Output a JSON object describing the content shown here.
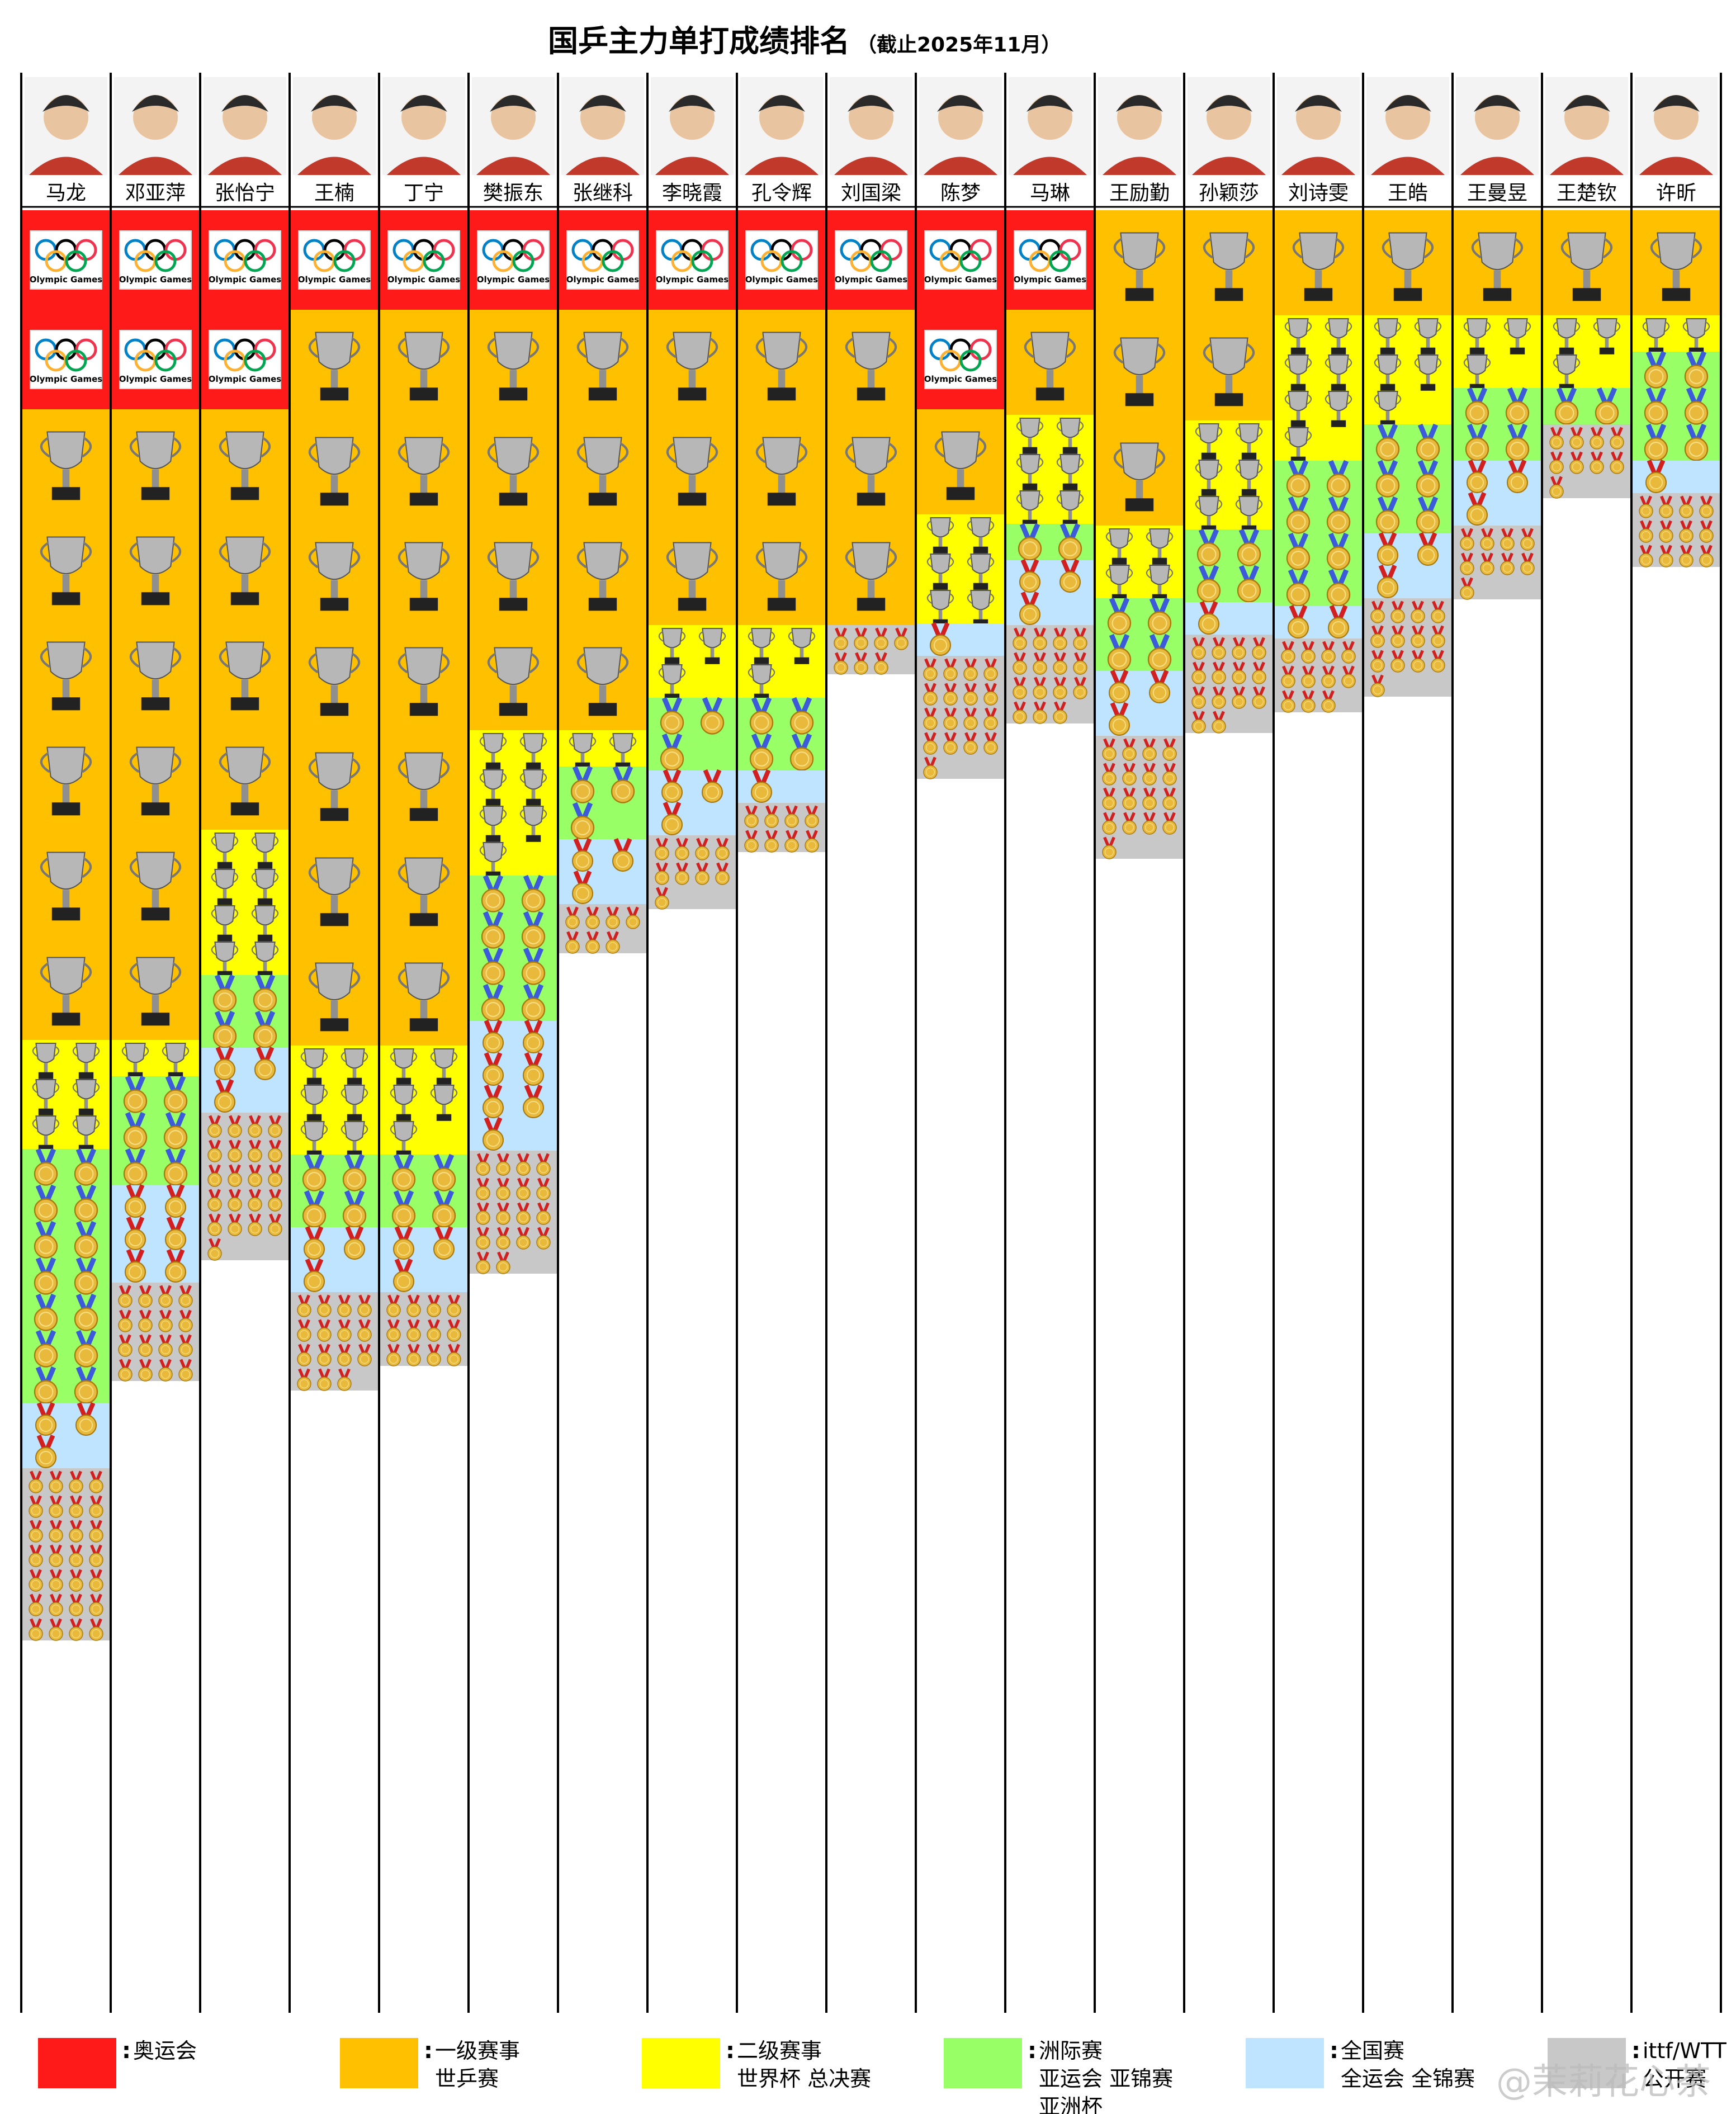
{
  "title": "国乒主力单打成绩排名",
  "subtitle": "（截止2025年11月）",
  "watermark": "@茉莉花心茶",
  "olympic_badge_label": "Olympic Games",
  "colors": {
    "olympic": "#ff1a1a",
    "level1": "#ffc000",
    "level2": "#ffff00",
    "continental": "#99ff66",
    "national": "#bfe4ff",
    "open": "#c8c8c8",
    "gold": "#e8b93a",
    "ribbon": "#d21f1f",
    "trophy": "#9a9a9a"
  },
  "legend": [
    {
      "key": "olympic",
      "colon": ":",
      "lines": [
        "奥运会"
      ]
    },
    {
      "key": "level1",
      "colon": ":",
      "lines": [
        "一级赛事",
        "世乒赛"
      ]
    },
    {
      "key": "level2",
      "colon": ":",
      "lines": [
        "二级赛事",
        "世界杯 总决赛"
      ]
    },
    {
      "key": "continental",
      "colon": ":",
      "lines": [
        "洲际赛",
        "亚运会  亚锦赛",
        "亚洲杯"
      ]
    },
    {
      "key": "national",
      "colon": ":",
      "lines": [
        "全国赛",
        "全运会  全锦赛"
      ]
    },
    {
      "key": "open",
      "colon": ":",
      "lines": [
        "ittf/WTT",
        "公开赛"
      ]
    }
  ],
  "chart_data": {
    "type": "table",
    "description_units": "count of singles titles per category",
    "categories": [
      "olympic",
      "level1",
      "level2",
      "continental",
      "national",
      "open"
    ],
    "players": [
      {
        "name": "马龙",
        "olympic": 2,
        "level1": 6,
        "level2": 6,
        "continental": 14,
        "national": 3,
        "open": 28
      },
      {
        "name": "邓亚萍",
        "olympic": 2,
        "level1": 6,
        "level2": 2,
        "continental": 6,
        "national": 6,
        "open": 16
      },
      {
        "name": "张怡宁",
        "olympic": 2,
        "level1": 4,
        "level2": 8,
        "continental": 4,
        "national": 3,
        "open": 21
      },
      {
        "name": "王楠",
        "olympic": 1,
        "level1": 7,
        "level2": 6,
        "continental": 4,
        "national": 3,
        "open": 15
      },
      {
        "name": "丁宁",
        "olympic": 1,
        "level1": 7,
        "level2": 5,
        "continental": 4,
        "national": 3,
        "open": 12
      },
      {
        "name": "樊振东",
        "olympic": 1,
        "level1": 4,
        "level2": 7,
        "continental": 8,
        "national": 7,
        "open": 18
      },
      {
        "name": "张继科",
        "olympic": 1,
        "level1": 4,
        "level2": 2,
        "continental": 3,
        "national": 3,
        "open": 7
      },
      {
        "name": "李晓霞",
        "olympic": 1,
        "level1": 3,
        "level2": 3,
        "continental": 3,
        "national": 3,
        "open": 9
      },
      {
        "name": "孔令辉",
        "olympic": 1,
        "level1": 3,
        "level2": 3,
        "continental": 4,
        "national": 1,
        "open": 8
      },
      {
        "name": "刘国梁",
        "olympic": 1,
        "level1": 3,
        "level2": 0,
        "continental": 0,
        "national": 0,
        "open": 7
      },
      {
        "name": "陈梦",
        "olympic": 2,
        "level1": 1,
        "level2": 6,
        "continental": 0,
        "national": 1,
        "open": 17
      },
      {
        "name": "马琳",
        "olympic": 1,
        "level1": 1,
        "level2": 6,
        "continental": 2,
        "national": 3,
        "open": 15
      },
      {
        "name": "王励勤",
        "olympic": 0,
        "level1": 3,
        "level2": 4,
        "continental": 4,
        "national": 3,
        "open": 17
      },
      {
        "name": "孙颖莎",
        "olympic": 0,
        "level1": 2,
        "level2": 6,
        "continental": 4,
        "national": 1,
        "open": 14
      },
      {
        "name": "刘诗雯",
        "olympic": 0,
        "level1": 1,
        "level2": 7,
        "continental": 8,
        "national": 2,
        "open": 11
      },
      {
        "name": "王皓",
        "olympic": 0,
        "level1": 1,
        "level2": 5,
        "continental": 6,
        "national": 3,
        "open": 13
      },
      {
        "name": "王曼昱",
        "olympic": 0,
        "level1": 1,
        "level2": 3,
        "continental": 4,
        "national": 3,
        "open": 9
      },
      {
        "name": "王楚钦",
        "olympic": 0,
        "level1": 1,
        "level2": 3,
        "continental": 2,
        "national": 0,
        "open": 9
      },
      {
        "name": "许昕",
        "olympic": 0,
        "level1": 1,
        "level2": 2,
        "continental": 6,
        "national": 1,
        "open": 12
      }
    ]
  }
}
